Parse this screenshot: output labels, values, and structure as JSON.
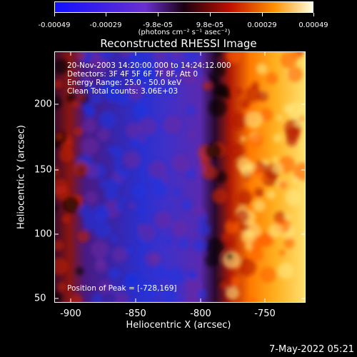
{
  "colorbar": {
    "ticks": [
      "-0.00049",
      "-0.00029",
      "-9.8e-05",
      "9.8e-05",
      "0.00029",
      "0.00049"
    ],
    "units_label": "(photons cm⁻² s⁻¹ asec⁻²)"
  },
  "plot": {
    "title": "Reconstructed RHESSI Image",
    "xlabel": "Heliocentric X (arcsec)",
    "ylabel": "Heliocentric Y (arcsec)",
    "xticks": [
      "-900",
      "-850",
      "-800",
      "-750"
    ],
    "yticks": [
      "200",
      "150",
      "100",
      "50"
    ],
    "info_lines": [
      "20-Nov-2003 14:20:00.000 to 14:24:12.000",
      "Detectors: 3F 4F 5F 6F 7F 8F, Att 0",
      "Energy Range: 25.0 - 50.0 keV",
      "Clean     Total counts: 3.06E+03"
    ],
    "peak_text": "Position of Peak = [-728,169]"
  },
  "footer": {
    "date": "7-May-2022 05:21"
  },
  "colors": {
    "axis": "#ffffff",
    "background": "#000000"
  },
  "chart_data": {
    "type": "heatmap",
    "title": "Reconstructed RHESSI Image",
    "xlabel": "Heliocentric X (arcsec)",
    "ylabel": "Heliocentric Y (arcsec)",
    "xlim": [
      -915,
      -720
    ],
    "ylim": [
      48,
      235
    ],
    "color_range": [
      -0.00049,
      0.00049
    ],
    "peak_position": [
      -728,
      169
    ]
  }
}
